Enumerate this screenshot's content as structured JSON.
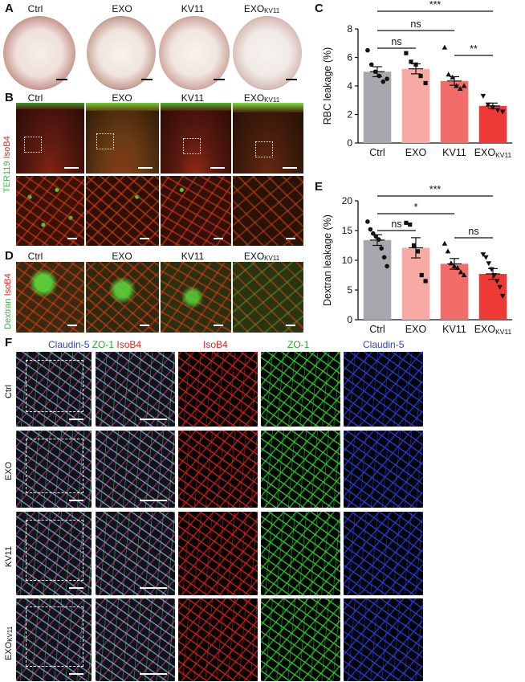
{
  "panels": {
    "A": "A",
    "B": "B",
    "C": "C",
    "D": "D",
    "E": "E",
    "F": "F"
  },
  "groups": [
    "Ctrl",
    "EXO",
    "KV11",
    "EXOKV11"
  ],
  "group_labels": {
    "ctrl": "Ctrl",
    "exo": "EXO",
    "kv11": "KV11",
    "exokv_main": "EXO",
    "exokv_sub": "KV11"
  },
  "stain_labels": {
    "isob4": "IsoB4",
    "ter119": "TER119",
    "dextran": "Dextran",
    "claudin5": "Claudin-5",
    "zo1": "ZO-1"
  },
  "colors": {
    "ctrl_bar": "#a7a7ae",
    "exo_bar": "#f7a9a4",
    "kv11_bar": "#f26c6a",
    "exokv11_bar": "#ee3a36",
    "isob4_red": "#e8201a",
    "zo1_green": "#22c832",
    "claudin_blue": "#2f3fd8",
    "green_label": "#3fb24a"
  },
  "chart_data": [
    {
      "panel": "C",
      "type": "bar",
      "categories": [
        "Ctrl",
        "EXO",
        "KV11",
        "EXOKV11"
      ],
      "values": [
        5.0,
        5.2,
        4.35,
        2.6
      ],
      "errors": [
        0.35,
        0.35,
        0.3,
        0.2
      ],
      "points": [
        [
          6.5,
          5.5,
          5.0,
          4.7,
          4.3,
          4.5
        ],
        [
          6.3,
          5.7,
          5.5,
          4.7,
          4.2
        ],
        [
          6.7,
          4.8,
          4.6,
          4.0,
          3.8,
          4.0
        ],
        [
          3.3,
          2.7,
          2.5,
          2.3,
          2.2
        ]
      ],
      "ylabel": "RBC leakage (%)",
      "ylim": [
        0,
        8
      ],
      "yticks": [
        0,
        2,
        4,
        6,
        8
      ],
      "significance": [
        {
          "from": 0,
          "to": 3,
          "label": "***"
        },
        {
          "from": 0,
          "to": 2,
          "label": "ns"
        },
        {
          "from": 0,
          "to": 1,
          "label": "ns"
        },
        {
          "from": 2,
          "to": 3,
          "label": "**"
        }
      ]
    },
    {
      "panel": "E",
      "type": "bar",
      "categories": [
        "Ctrl",
        "EXO",
        "KV11",
        "EXOKV11"
      ],
      "values": [
        13.4,
        12.1,
        9.4,
        7.7
      ],
      "errors": [
        0.9,
        1.7,
        0.9,
        0.9
      ],
      "points": [
        [
          16.5,
          15.2,
          14.5,
          14.0,
          13.5,
          12.0,
          10.5,
          9.0
        ],
        [
          16.3,
          16.0,
          12.5,
          11.5,
          7.5,
          6.5
        ],
        [
          12.8,
          11.5,
          9.5,
          9.0,
          8.7,
          8.0,
          7.5
        ],
        [
          11.0,
          10.5,
          9.5,
          8.5,
          7.5,
          6.5,
          5.5,
          4.0
        ]
      ],
      "ylabel": "Dextran leakage (%)",
      "ylim": [
        0,
        20
      ],
      "yticks": [
        0,
        5,
        10,
        15,
        20
      ],
      "significance": [
        {
          "from": 0,
          "to": 3,
          "label": "***"
        },
        {
          "from": 0,
          "to": 2,
          "label": "*"
        },
        {
          "from": 0,
          "to": 1,
          "label": "ns"
        },
        {
          "from": 2,
          "to": 3,
          "label": "ns"
        }
      ]
    }
  ]
}
